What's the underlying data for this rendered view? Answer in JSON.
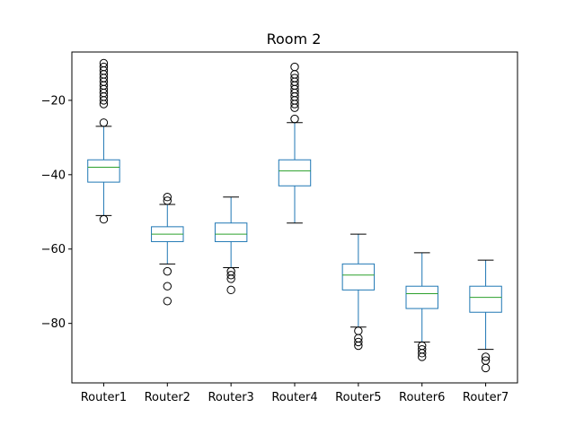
{
  "chart_data": {
    "type": "box",
    "title": "Room 2",
    "xlabel": "",
    "ylabel": "",
    "ylim": [
      -96,
      -7
    ],
    "yticks": [
      -20,
      -40,
      -60,
      -80
    ],
    "ytick_labels": [
      "−20",
      "−40",
      "−60",
      "−80"
    ],
    "grid": false,
    "colors": {
      "box": "#1f77b4",
      "median": "#2ca02c",
      "outlier": "#000000"
    },
    "categories": [
      "Router1",
      "Router2",
      "Router3",
      "Router4",
      "Router5",
      "Router6",
      "Router7"
    ],
    "boxes": [
      {
        "name": "Router1",
        "whisker_low": -51,
        "q1": -42,
        "median": -38,
        "q3": -36,
        "whisker_high": -27,
        "outliers": [
          -10,
          -11,
          -12,
          -13,
          -14,
          -15,
          -16,
          -17,
          -18,
          -19,
          -20,
          -21,
          -26,
          -52
        ]
      },
      {
        "name": "Router2",
        "whisker_low": -64,
        "q1": -58,
        "median": -56,
        "q3": -54,
        "whisker_high": -48,
        "outliers": [
          -46,
          -47,
          -66,
          -70,
          -74
        ]
      },
      {
        "name": "Router3",
        "whisker_low": -65,
        "q1": -58,
        "median": -56,
        "q3": -53,
        "whisker_high": -46,
        "outliers": [
          -66,
          -67,
          -68,
          -71
        ]
      },
      {
        "name": "Router4",
        "whisker_low": -53,
        "q1": -43,
        "median": -39,
        "q3": -36,
        "whisker_high": -26,
        "outliers": [
          -11,
          -13,
          -14,
          -15,
          -16,
          -17,
          -18,
          -19,
          -20,
          -21,
          -22,
          -25
        ]
      },
      {
        "name": "Router5",
        "whisker_low": -81,
        "q1": -71,
        "median": -67,
        "q3": -64,
        "whisker_high": -56,
        "outliers": [
          -82,
          -84,
          -85,
          -86
        ]
      },
      {
        "name": "Router6",
        "whisker_low": -85,
        "q1": -76,
        "median": -72,
        "q3": -70,
        "whisker_high": -61,
        "outliers": [
          -86,
          -87,
          -88,
          -89
        ]
      },
      {
        "name": "Router7",
        "whisker_low": -87,
        "q1": -77,
        "median": -73,
        "q3": -70,
        "whisker_high": -63,
        "outliers": [
          -89,
          -90,
          -92
        ]
      }
    ]
  }
}
